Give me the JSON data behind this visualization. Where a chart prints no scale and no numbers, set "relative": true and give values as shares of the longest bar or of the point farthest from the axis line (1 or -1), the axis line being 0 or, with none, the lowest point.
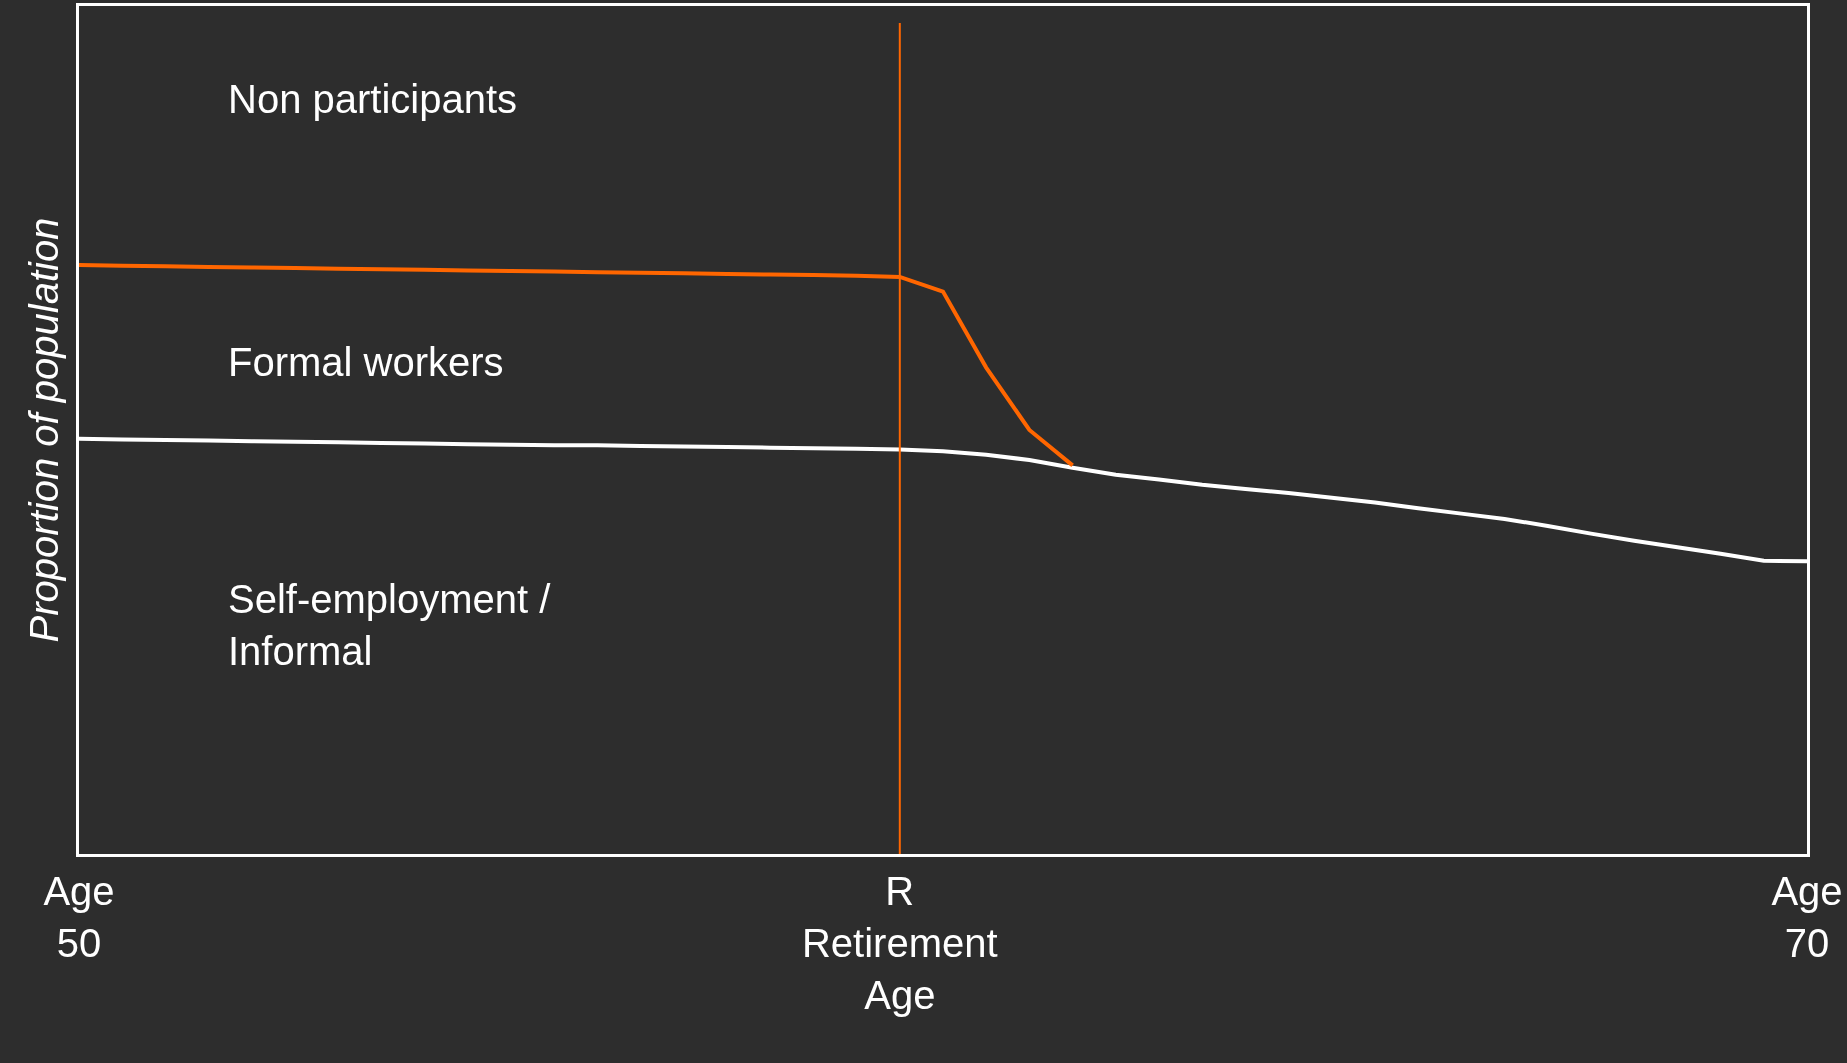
{
  "chart_data": {
    "type": "line",
    "relative": true,
    "ylabel": "Proportion of population",
    "categories": [
      "Age\n50",
      null,
      null,
      null,
      null,
      null,
      null,
      null,
      null,
      null,
      null,
      null,
      null,
      null,
      null,
      null,
      null,
      null,
      null,
      "R\nRetirement\nAge",
      null,
      null,
      null,
      null,
      null,
      null,
      null,
      null,
      null,
      null,
      null,
      null,
      null,
      null,
      null,
      null,
      null,
      null,
      null,
      null,
      "Age\n70"
    ],
    "series": [
      {
        "color": "#ffffff",
        "values": [
          0.705,
          0.704,
          0.703,
          0.702,
          0.701,
          0.7,
          0.699,
          0.698,
          0.697,
          0.696,
          0.695,
          0.694,
          0.694,
          0.693,
          0.692,
          0.691,
          0.69,
          0.689,
          0.688,
          0.687,
          0.684,
          0.678,
          0.669,
          0.656,
          0.644,
          0.636,
          0.627,
          0.62,
          0.613,
          0.605,
          0.597,
          0.587,
          0.578,
          0.569,
          0.557,
          0.544,
          0.532,
          0.521,
          0.51,
          0.498,
          0.497
        ]
      },
      {
        "color": "#ff6600",
        "values": [
          1,
          0.999,
          0.998,
          0.997,
          0.996,
          0.995,
          0.994,
          0.993,
          0.992,
          0.991,
          0.99,
          0.989,
          0.988,
          0.987,
          0.986,
          0.985,
          0.984,
          0.983,
          0.982,
          0.98,
          0.955,
          0.826,
          0.72,
          0.66,
          null,
          null,
          null,
          null,
          null,
          null,
          null,
          null,
          null,
          null,
          null,
          null,
          null,
          null,
          null,
          null,
          null
        ]
      }
    ],
    "ref_lines": [
      {
        "axis": "x",
        "value": "R\nRetirement\nAge",
        "color": "#ff6600"
      }
    ],
    "annotations": [
      "Non participants",
      "Formal workers",
      "Self-employment /\nInformal"
    ],
    "marker": "none",
    "line_style": "solid"
  }
}
